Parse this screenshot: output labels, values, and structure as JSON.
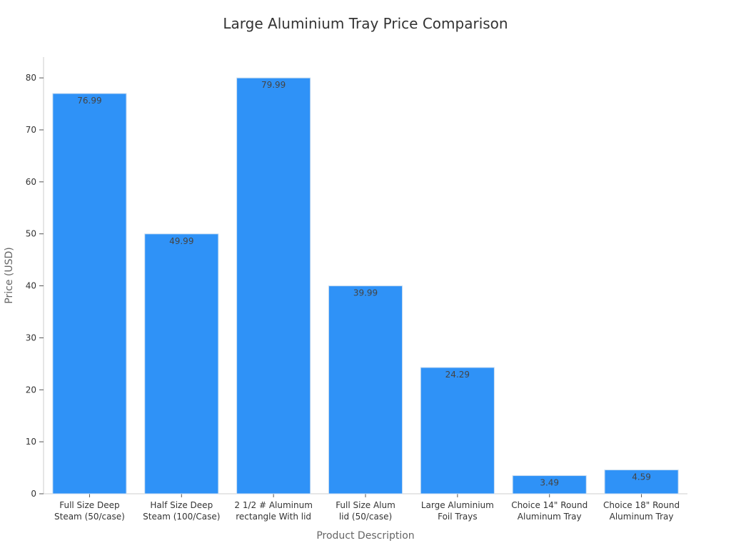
{
  "chart_data": {
    "type": "bar",
    "title": "Large Aluminium Tray Price Comparison",
    "xlabel": "Product Description",
    "ylabel": "Price (USD)",
    "ylim": [
      0,
      84
    ],
    "yticks": [
      0,
      10,
      20,
      30,
      40,
      50,
      60,
      70,
      80
    ],
    "grid": false,
    "bar_color": "#2f92f7",
    "categories": [
      [
        "Full Size Deep",
        "Steam (50/case)"
      ],
      [
        "Half Size Deep",
        "Steam (100/Case)"
      ],
      [
        "2 1/2 # Aluminum",
        "rectangle With lid"
      ],
      [
        "Full Size Alum",
        "lid (50/case)"
      ],
      [
        "Large Aluminium",
        "Foil Trays"
      ],
      [
        "Choice 14\" Round",
        "Aluminum Tray"
      ],
      [
        "Choice 18\" Round",
        "Aluminum Tray"
      ]
    ],
    "values": [
      76.99,
      49.99,
      79.99,
      39.99,
      24.29,
      3.49,
      4.59
    ],
    "data_labels": [
      "76.99",
      "49.99",
      "79.99",
      "39.99",
      "24.29",
      "3.49",
      "4.59"
    ]
  }
}
